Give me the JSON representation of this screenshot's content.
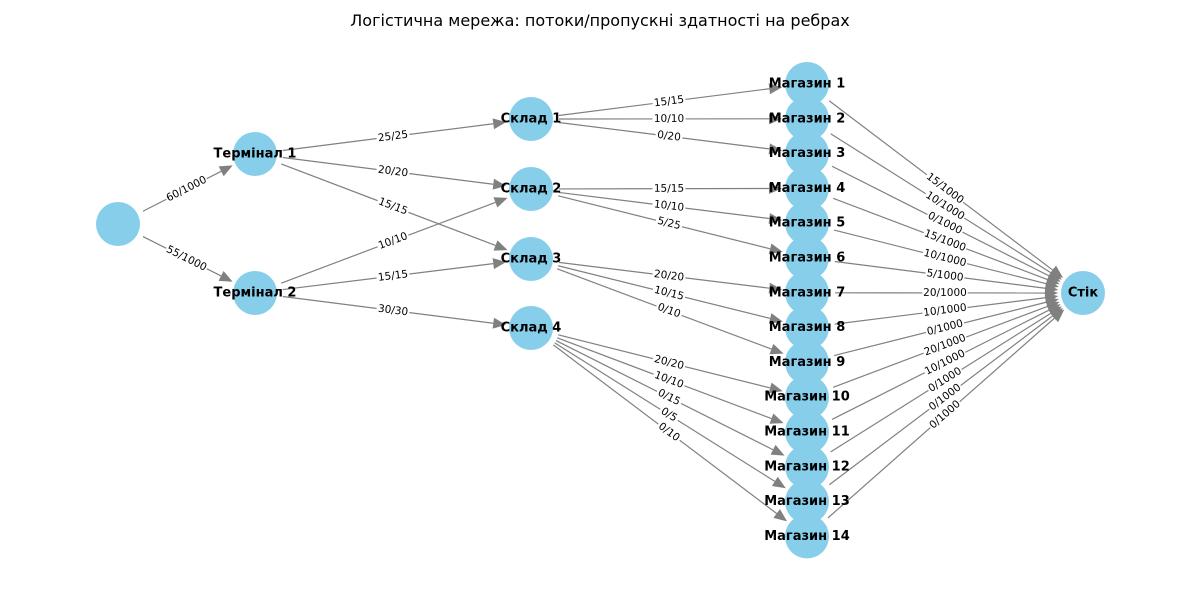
{
  "title": "Логістична мережа: потоки/пропускні здатності на ребрах",
  "colors": {
    "node": "#87ceeb",
    "edge": "#808080",
    "label_bg": "#ffffff"
  },
  "nodes": [
    {
      "id": "source",
      "label": ""
    },
    {
      "id": "t1",
      "label": "Термінал 1"
    },
    {
      "id": "t2",
      "label": "Термінал 2"
    },
    {
      "id": "w1",
      "label": "Склад 1"
    },
    {
      "id": "w2",
      "label": "Склад 2"
    },
    {
      "id": "w3",
      "label": "Склад 3"
    },
    {
      "id": "w4",
      "label": "Склад 4"
    },
    {
      "id": "m1",
      "label": "Магазин 1"
    },
    {
      "id": "m2",
      "label": "Магазин 2"
    },
    {
      "id": "m3",
      "label": "Магазин 3"
    },
    {
      "id": "m4",
      "label": "Магазин 4"
    },
    {
      "id": "m5",
      "label": "Магазин 5"
    },
    {
      "id": "m6",
      "label": "Магазин 6"
    },
    {
      "id": "m7",
      "label": "Магазин 7"
    },
    {
      "id": "m8",
      "label": "Магазин 8"
    },
    {
      "id": "m9",
      "label": "Магазин 9"
    },
    {
      "id": "m10",
      "label": "Магазин 10"
    },
    {
      "id": "m11",
      "label": "Магазин 11"
    },
    {
      "id": "m12",
      "label": "Магазин 12"
    },
    {
      "id": "m13",
      "label": "Магазин 13"
    },
    {
      "id": "m14",
      "label": "Магазин 14"
    },
    {
      "id": "sink",
      "label": "Стік"
    }
  ],
  "edges": [
    {
      "from": "source",
      "to": "t1",
      "label": "60/1000"
    },
    {
      "from": "source",
      "to": "t2",
      "label": "55/1000"
    },
    {
      "from": "t1",
      "to": "w1",
      "label": "25/25"
    },
    {
      "from": "t1",
      "to": "w2",
      "label": "20/20"
    },
    {
      "from": "t1",
      "to": "w3",
      "label": "15/15"
    },
    {
      "from": "t2",
      "to": "w2",
      "label": "10/10"
    },
    {
      "from": "t2",
      "to": "w3",
      "label": "15/15"
    },
    {
      "from": "t2",
      "to": "w4",
      "label": "30/30"
    },
    {
      "from": "w1",
      "to": "m1",
      "label": "15/15"
    },
    {
      "from": "w1",
      "to": "m2",
      "label": "10/10"
    },
    {
      "from": "w1",
      "to": "m3",
      "label": "0/20"
    },
    {
      "from": "w2",
      "to": "m4",
      "label": "15/15"
    },
    {
      "from": "w2",
      "to": "m5",
      "label": "10/10"
    },
    {
      "from": "w2",
      "to": "m6",
      "label": "5/25"
    },
    {
      "from": "w3",
      "to": "m7",
      "label": "20/20"
    },
    {
      "from": "w3",
      "to": "m8",
      "label": "10/15"
    },
    {
      "from": "w3",
      "to": "m9",
      "label": "0/10"
    },
    {
      "from": "w4",
      "to": "m10",
      "label": "20/20"
    },
    {
      "from": "w4",
      "to": "m11",
      "label": "10/10"
    },
    {
      "from": "w4",
      "to": "m12",
      "label": "0/15"
    },
    {
      "from": "w4",
      "to": "m13",
      "label": "0/5"
    },
    {
      "from": "w4",
      "to": "m14",
      "label": "0/10"
    },
    {
      "from": "m1",
      "to": "sink",
      "label": "15/1000"
    },
    {
      "from": "m2",
      "to": "sink",
      "label": "10/1000"
    },
    {
      "from": "m3",
      "to": "sink",
      "label": "0/1000"
    },
    {
      "from": "m4",
      "to": "sink",
      "label": "15/1000"
    },
    {
      "from": "m5",
      "to": "sink",
      "label": "10/1000"
    },
    {
      "from": "m6",
      "to": "sink",
      "label": "5/1000"
    },
    {
      "from": "m7",
      "to": "sink",
      "label": "20/1000"
    },
    {
      "from": "m8",
      "to": "sink",
      "label": "10/1000"
    },
    {
      "from": "m9",
      "to": "sink",
      "label": "0/1000"
    },
    {
      "from": "m10",
      "to": "sink",
      "label": "20/1000"
    },
    {
      "from": "m11",
      "to": "sink",
      "label": "10/1000"
    },
    {
      "from": "m12",
      "to": "sink",
      "label": "0/1000"
    },
    {
      "from": "m13",
      "to": "sink",
      "label": "0/1000"
    },
    {
      "from": "m14",
      "to": "sink",
      "label": "0/1000"
    }
  ]
}
